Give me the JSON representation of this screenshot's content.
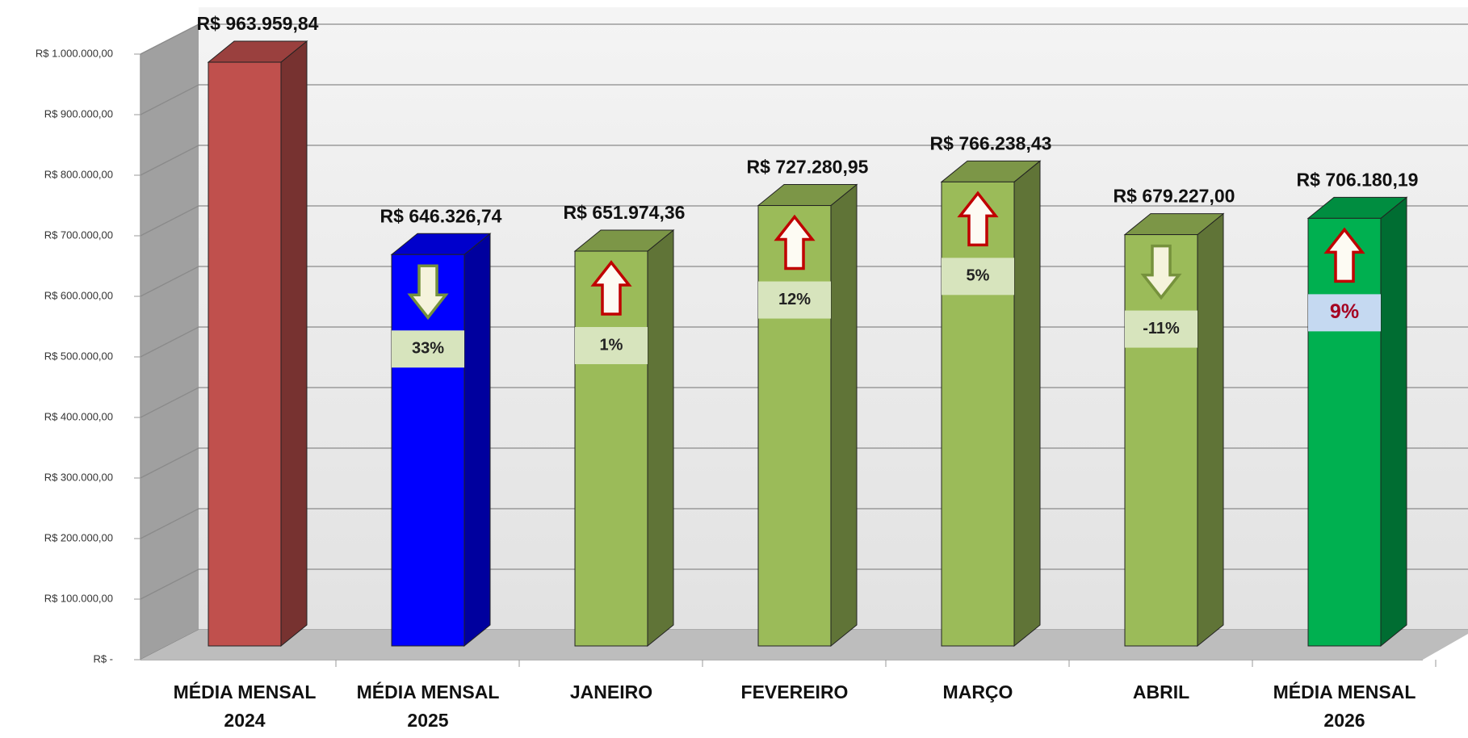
{
  "chart_data": {
    "type": "bar3d",
    "categories": [
      "MÉDIA MENSAL 2024",
      "MÉDIA MENSAL 2025",
      "JANEIRO",
      "FEVEREIRO",
      "MARÇO",
      "ABRIL",
      "MÉDIA MENSAL 2026"
    ],
    "values": [
      963959.84,
      646326.74,
      651974.36,
      727280.95,
      766238.43,
      679227.0,
      706180.19
    ],
    "value_labels": [
      "R$ 963.959,84",
      "R$ 646.326,74",
      "R$ 651.974,36",
      "R$ 727.280,95",
      "R$ 766.238,43",
      "R$ 679.227,00",
      "R$ 706.180,19"
    ],
    "colors": [
      "#c0504d",
      "#0000ff",
      "#9bbb59",
      "#9bbb59",
      "#9bbb59",
      "#9bbb59",
      "#00b050"
    ],
    "change_labels": [
      null,
      "33%",
      "1%",
      "12%",
      "5%",
      "-11%",
      "9%"
    ],
    "change_direction": [
      null,
      "down",
      "up",
      "up",
      "up",
      "down",
      "up"
    ],
    "change_box_colors": [
      null,
      "#d7e4bd",
      "#d7e4bd",
      "#d7e4bd",
      "#d7e4bd",
      "#d7e4bd",
      "#c5d9f1"
    ],
    "change_text_colors": [
      null,
      "#222222",
      "#222222",
      "#222222",
      "#222222",
      "#222222",
      "#a50021"
    ],
    "ylim": [
      0,
      1000000
    ],
    "yticks": [
      {
        "value": 0,
        "label": "R$ -"
      },
      {
        "value": 100000,
        "label": "R$ 100.000,00"
      },
      {
        "value": 200000,
        "label": "R$ 200.000,00"
      },
      {
        "value": 300000,
        "label": "R$ 300.000,00"
      },
      {
        "value": 400000,
        "label": "R$ 400.000,00"
      },
      {
        "value": 500000,
        "label": "R$ 500.000,00"
      },
      {
        "value": 600000,
        "label": "R$ 600.000,00"
      },
      {
        "value": 700000,
        "label": "R$ 700.000,00"
      },
      {
        "value": 800000,
        "label": "R$ 800.000,00"
      },
      {
        "value": 900000,
        "label": "R$ 900.000,00"
      },
      {
        "value": 1000000,
        "label": "R$ 1.000.000,00"
      }
    ],
    "grid": true
  }
}
